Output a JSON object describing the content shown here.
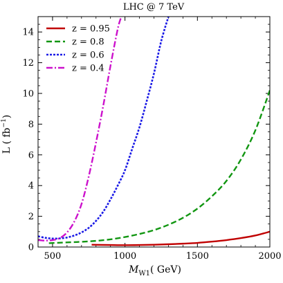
{
  "chart_data": {
    "type": "line",
    "title": "LHC @ 7 TeV",
    "xlabel": "M_W1 ( GeV)",
    "xlabel_main": "M",
    "xlabel_sub": "W1",
    "xlabel_tail": "( GeV)",
    "ylabel": "L ( fb^-1 )",
    "ylabel_main": "L ( fb",
    "ylabel_sup": "−1",
    "ylabel_tail": ")",
    "xlim": [
      400,
      2000
    ],
    "ylim": [
      0,
      15
    ],
    "x_ticks": [
      {
        "value": 500,
        "label": "500"
      },
      {
        "value": 1000,
        "label": "1000"
      },
      {
        "value": 1500,
        "label": "1500"
      },
      {
        "value": 2000,
        "label": "2000"
      }
    ],
    "y_ticks": [
      {
        "value": 0,
        "label": "0"
      },
      {
        "value": 2,
        "label": "2"
      },
      {
        "value": 4,
        "label": "4"
      },
      {
        "value": 6,
        "label": "6"
      },
      {
        "value": 8,
        "label": "8"
      },
      {
        "value": 10,
        "label": "10"
      },
      {
        "value": 12,
        "label": "12"
      },
      {
        "value": 14,
        "label": "14"
      }
    ],
    "legend_position": "top-left",
    "series": [
      {
        "name": "z = 0.95",
        "color": "#c00000",
        "style": "solid",
        "x": [
          770,
          900,
          1000,
          1100,
          1200,
          1300,
          1400,
          1500,
          1600,
          1700,
          1800,
          1900,
          2000
        ],
        "y": [
          0.15,
          0.13,
          0.12,
          0.13,
          0.15,
          0.18,
          0.22,
          0.27,
          0.35,
          0.45,
          0.58,
          0.75,
          1.0
        ]
      },
      {
        "name": "z = 0.8",
        "color": "#119611",
        "style": "dashed",
        "x": [
          475,
          600,
          700,
          800,
          900,
          1000,
          1100,
          1200,
          1300,
          1400,
          1500,
          1600,
          1700,
          1800,
          1900,
          2000
        ],
        "y": [
          0.25,
          0.3,
          0.34,
          0.4,
          0.5,
          0.65,
          0.85,
          1.1,
          1.45,
          1.9,
          2.5,
          3.3,
          4.3,
          5.7,
          7.6,
          10.2
        ]
      },
      {
        "name": "z = 0.6",
        "color": "#1a1ae6",
        "style": "dotted",
        "x": [
          400,
          450,
          500,
          550,
          600,
          650,
          700,
          750,
          800,
          850,
          900,
          950,
          1000,
          1050,
          1100,
          1150,
          1200,
          1250,
          1300
        ],
        "y": [
          0.7,
          0.6,
          0.55,
          0.56,
          0.62,
          0.75,
          0.95,
          1.25,
          1.7,
          2.3,
          3.1,
          4.0,
          5.0,
          6.4,
          7.8,
          9.5,
          11.3,
          13.4,
          15.0
        ]
      },
      {
        "name": "z = 0.4",
        "color": "#cc11cc",
        "style": "dashdot",
        "x": [
          400,
          450,
          500,
          550,
          600,
          650,
          700,
          750,
          800,
          850,
          900,
          950,
          975
        ],
        "y": [
          0.45,
          0.42,
          0.45,
          0.58,
          0.95,
          1.65,
          2.8,
          4.6,
          6.8,
          9.2,
          11.8,
          14.2,
          15.0
        ]
      }
    ]
  }
}
